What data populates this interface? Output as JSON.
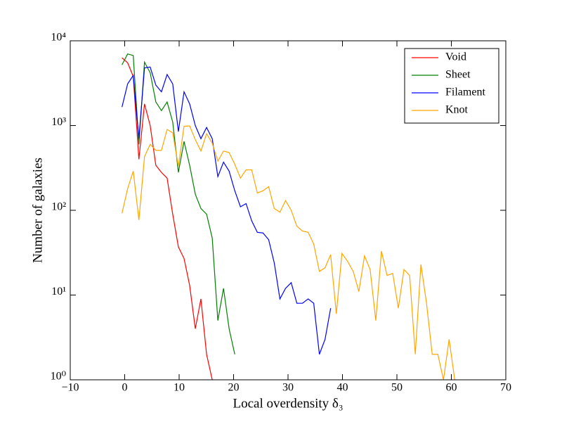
{
  "chart_data": {
    "type": "line",
    "xlabel": "Local overdensity δ₃",
    "ylabel": "Number of galaxies",
    "log_y": true,
    "legend": "upper right",
    "xlim": [
      -10,
      70
    ],
    "xticks": [
      {
        "value": -10,
        "label": "−10"
      },
      0,
      10,
      20,
      30,
      40,
      50,
      60,
      70
    ],
    "ylim": [
      1,
      10000
    ],
    "yticks": [
      {
        "value": 1,
        "label": "10⁰"
      },
      {
        "value": 10,
        "label": "10¹"
      },
      {
        "value": 100,
        "label": "10²"
      },
      {
        "value": 1000,
        "label": "10³"
      },
      {
        "value": 10000,
        "label": "10⁴"
      }
    ],
    "x": [
      -0.5,
      0.54,
      1.57,
      2.61,
      3.64,
      4.68,
      5.72,
      6.75,
      7.79,
      8.82,
      9.86,
      10.9,
      11.93,
      12.97,
      14.0,
      15.04,
      16.08,
      17.11,
      18.15,
      19.18,
      20.22,
      21.26,
      22.29,
      23.33,
      24.36,
      25.4,
      26.44,
      27.47,
      28.51,
      29.54,
      30.58,
      31.62,
      32.65,
      33.69,
      34.72,
      35.76,
      36.8,
      37.83,
      38.87,
      39.9,
      40.94,
      41.98,
      43.01,
      44.05,
      45.08,
      46.12,
      47.16,
      48.19,
      49.23,
      50.26,
      51.3,
      52.34,
      53.37,
      54.41,
      55.44,
      56.48,
      57.52,
      58.55,
      59.59,
      60.62
    ],
    "series": [
      {
        "name": "Void",
        "color": "#ff0000",
        "values": [
          6300,
          5500,
          3800,
          400,
          1800,
          1000,
          340,
          280,
          240,
          90,
          37,
          27,
          13,
          4,
          9,
          2,
          1,
          null,
          null,
          null,
          null,
          null,
          null,
          null,
          null,
          null,
          null,
          null,
          null,
          null,
          null,
          null,
          null,
          null,
          null,
          null,
          null,
          null,
          null,
          null,
          null,
          null,
          null,
          null,
          null,
          null,
          null,
          null,
          null,
          null,
          null,
          null,
          null,
          null,
          null,
          null,
          null,
          null,
          null,
          null
        ]
      },
      {
        "name": "Sheet",
        "color": "#008000",
        "values": [
          5200,
          7000,
          6700,
          600,
          5600,
          4200,
          1900,
          1500,
          1900,
          1100,
          280,
          650,
          340,
          155,
          105,
          90,
          47,
          5,
          12,
          4,
          2,
          null,
          null,
          null,
          null,
          null,
          null,
          null,
          null,
          null,
          null,
          null,
          null,
          null,
          null,
          null,
          null,
          null,
          null,
          null,
          null,
          null,
          null,
          null,
          null,
          null,
          null,
          null,
          null,
          null,
          null,
          null,
          null,
          null,
          null,
          null,
          null,
          null,
          null,
          null
        ]
      },
      {
        "name": "Filament",
        "color": "#0000ff",
        "values": [
          1650,
          3100,
          3900,
          700,
          4800,
          4900,
          3000,
          2500,
          4000,
          3100,
          850,
          2500,
          1800,
          1000,
          700,
          950,
          700,
          250,
          370,
          290,
          170,
          110,
          120,
          75,
          55,
          54,
          45,
          24,
          9,
          12,
          14,
          8,
          8,
          9,
          8,
          2,
          3,
          7,
          null,
          null,
          null,
          null,
          null,
          null,
          null,
          null,
          null,
          null,
          null,
          null,
          null,
          null,
          null,
          null,
          null,
          null,
          null,
          null,
          null,
          null
        ]
      },
      {
        "name": "Knot",
        "color": "#ffa500",
        "values": [
          92,
          180,
          290,
          77,
          430,
          600,
          510,
          510,
          900,
          820,
          330,
          980,
          990,
          680,
          500,
          800,
          620,
          380,
          500,
          480,
          350,
          240,
          300,
          300,
          160,
          170,
          190,
          105,
          95,
          130,
          100,
          65,
          57,
          55,
          40,
          19,
          21,
          30,
          6,
          31,
          25,
          19,
          11,
          29,
          20,
          5,
          33,
          17,
          18,
          7,
          20,
          17,
          2,
          23,
          8,
          2,
          2,
          1,
          3,
          1
        ]
      }
    ]
  }
}
